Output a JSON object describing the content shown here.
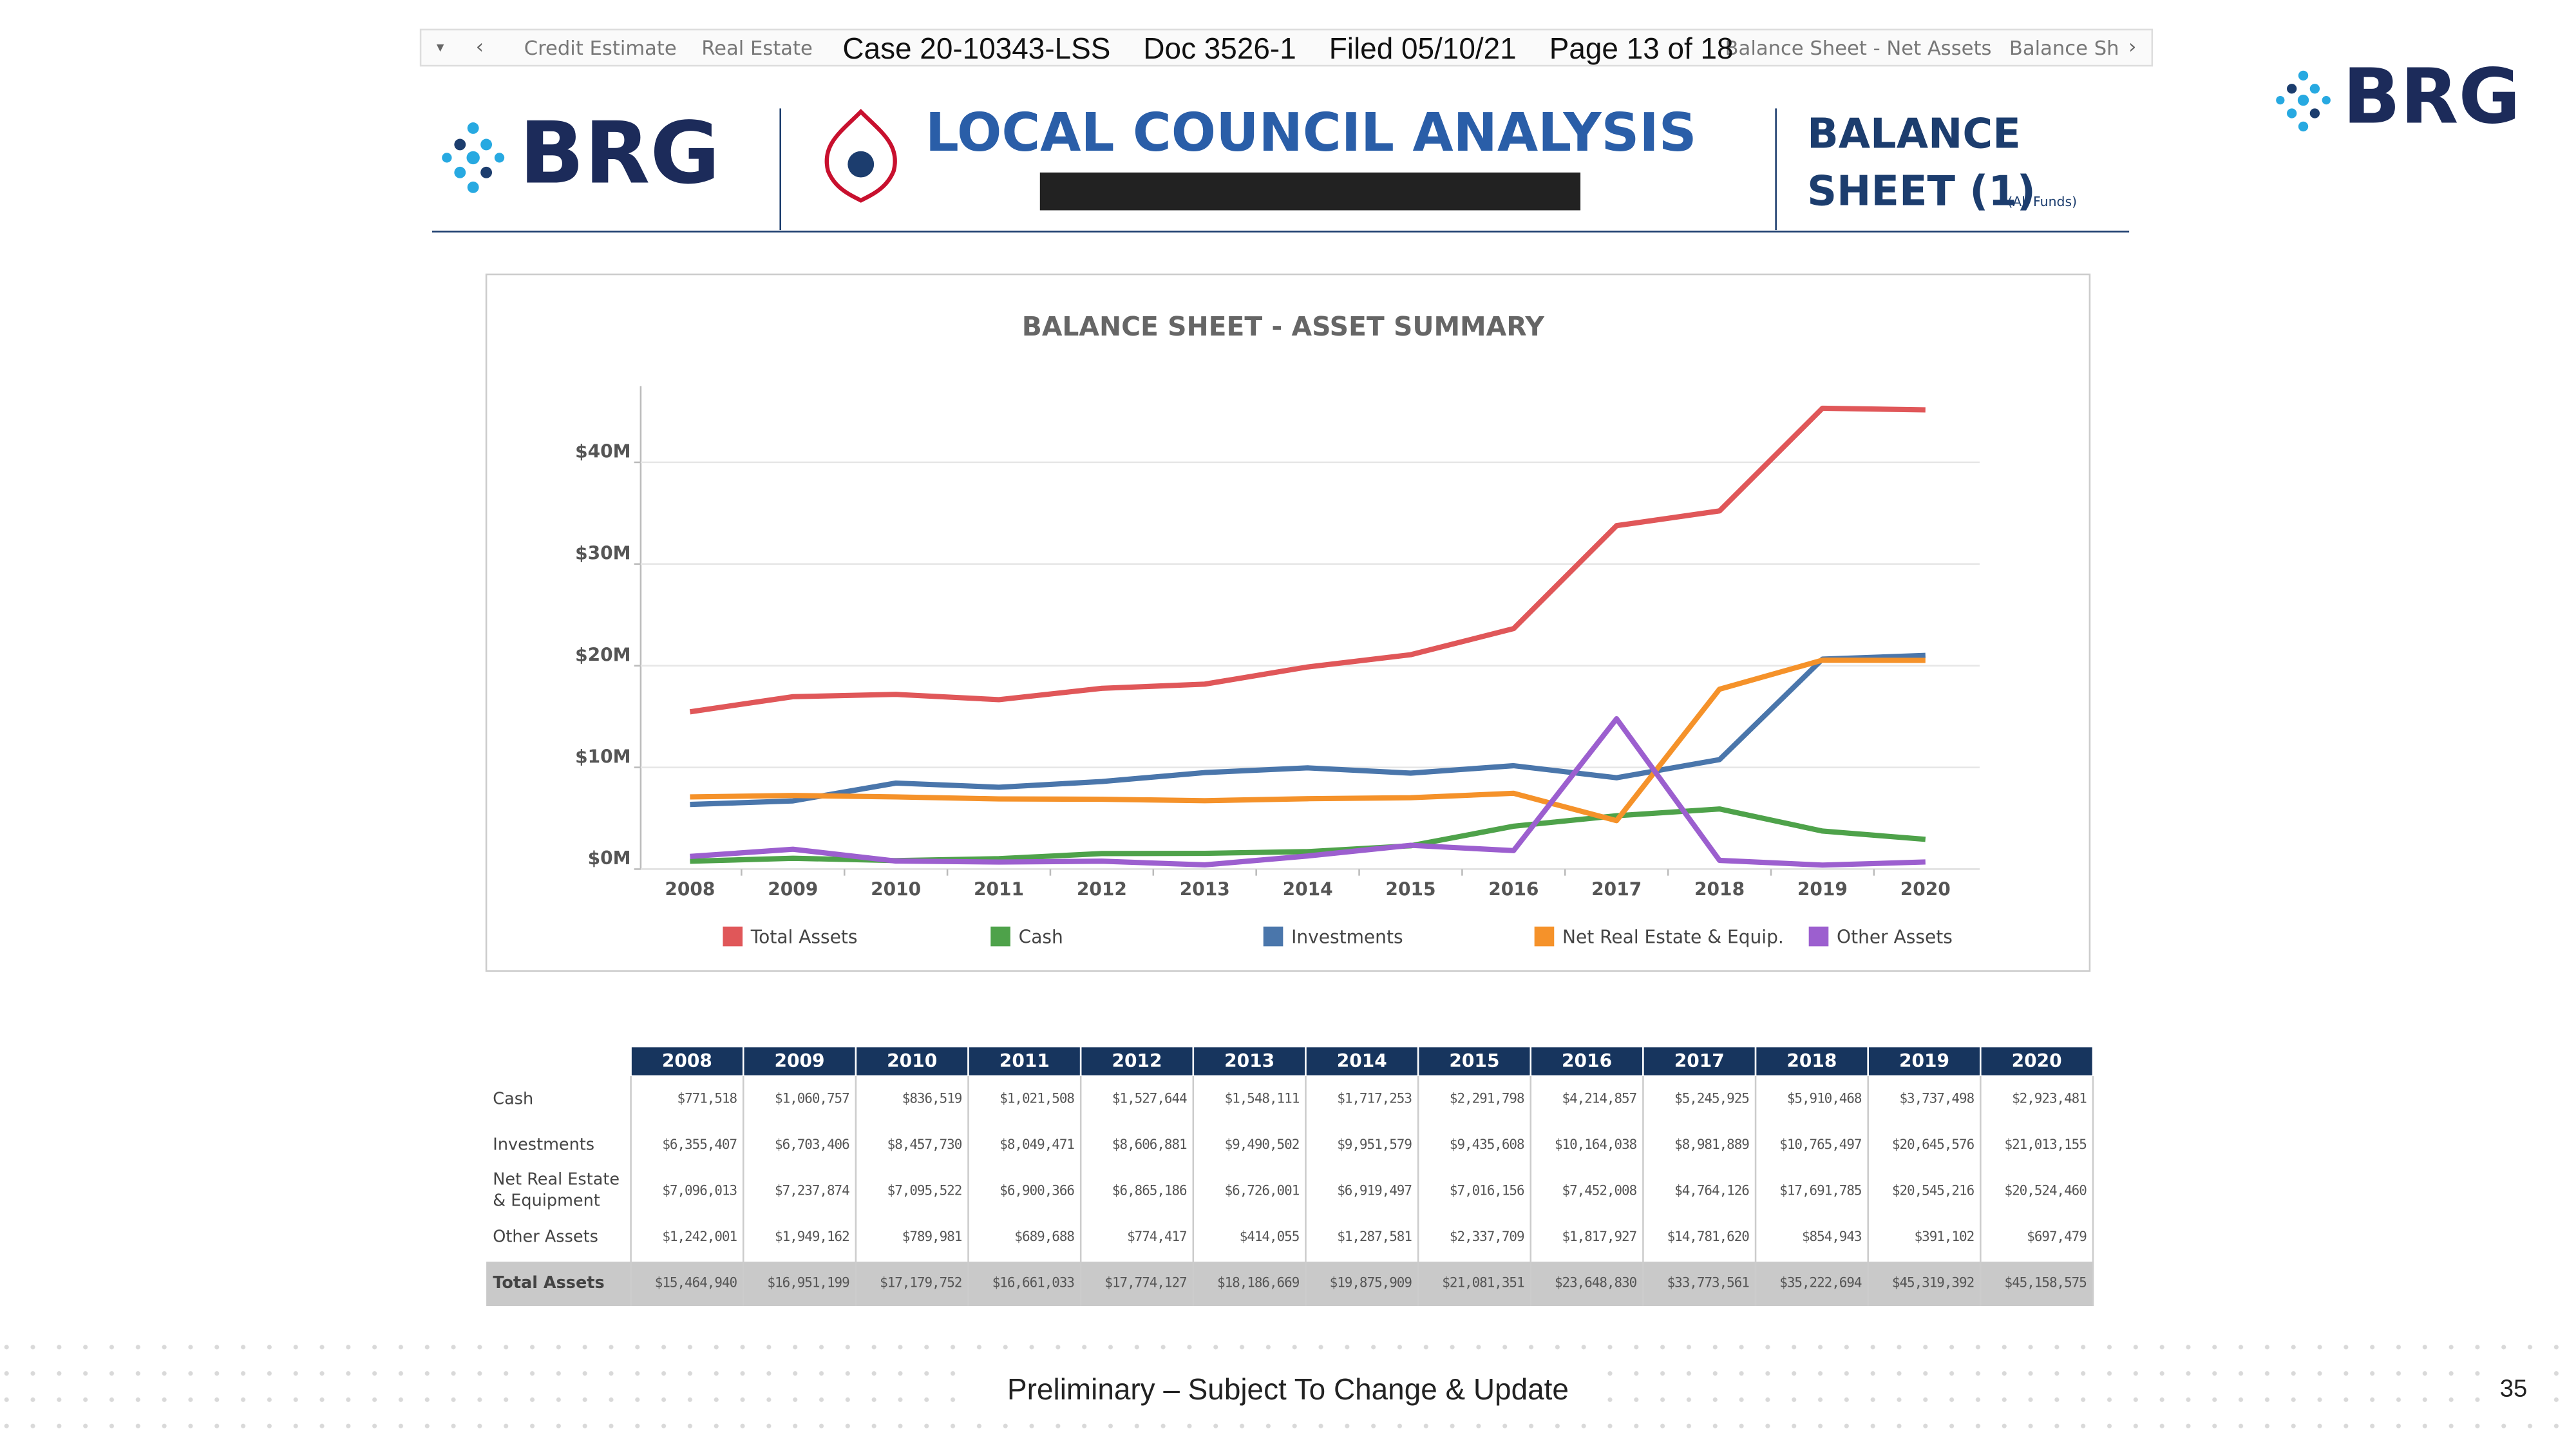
{
  "tabs": [
    "Credit Estimate",
    "Real Estate",
    "Balance Sheet - Net Assets",
    "Balance Sh"
  ],
  "stamp": "Case 20-10343-LSS    Doc 3526-1    Filed 05/10/21    Page 13 of 18",
  "header": {
    "logo": "BRG",
    "title": "LOCAL COUNCIL ANALYSIS",
    "section_line1": "BALANCE",
    "section_line2": "SHEET (1)",
    "section_note": "(All Funds)"
  },
  "chart_data": {
    "type": "line",
    "title": "BALANCE SHEET - ASSET SUMMARY",
    "categories": [
      "2008",
      "2009",
      "2010",
      "2011",
      "2012",
      "2013",
      "2014",
      "2015",
      "2016",
      "2017",
      "2018",
      "2019",
      "2020"
    ],
    "ylim": [
      0,
      47500000
    ],
    "yticks": [
      {
        "value": 0,
        "label": "$0M"
      },
      {
        "value": 10000000,
        "label": "$10M"
      },
      {
        "value": 20000000,
        "label": "$20M"
      },
      {
        "value": 30000000,
        "label": "$30M"
      },
      {
        "value": 40000000,
        "label": "$40M"
      }
    ],
    "grid": true,
    "legend": "bottom",
    "series": [
      {
        "name": "Total Assets",
        "color": "#e05759",
        "values": [
          15464940,
          16951199,
          17179752,
          16661033,
          17774127,
          18186669,
          19875909,
          21081351,
          23648830,
          33773561,
          35222694,
          45319392,
          45158575
        ],
        "value_labels": [
          "$15,464,940",
          "$16,951,199",
          "$17,179,752",
          "$16,661,033",
          "$17,774,127",
          "$18,186,669",
          "$19,875,909",
          "$21,081,351",
          "$23,648,830",
          "$33,773,561",
          "$35,222,694",
          "$45,319,392",
          "$45,158,575"
        ]
      },
      {
        "name": "Cash",
        "color": "#4ea24a",
        "values": [
          771518,
          1060757,
          836519,
          1021508,
          1527644,
          1548111,
          1717253,
          2291798,
          4214857,
          5245925,
          5910468,
          3737498,
          2923481
        ],
        "value_labels": [
          "$771,518",
          "$1,060,757",
          "$836,519",
          "$1,021,508",
          "$1,527,644",
          "$1,548,111",
          "$1,717,253",
          "$2,291,798",
          "$4,214,857",
          "$5,245,925",
          "$5,910,468",
          "$3,737,498",
          "$2,923,481"
        ]
      },
      {
        "name": "Investments",
        "color": "#4a76ab",
        "values": [
          6355407,
          6703406,
          8457730,
          8049471,
          8606881,
          9490502,
          9951579,
          9435608,
          10164038,
          8981889,
          10765497,
          20645576,
          21013155
        ],
        "value_labels": [
          "$6,355,407",
          "$6,703,406",
          "$8,457,730",
          "$8,049,471",
          "$8,606,881",
          "$9,490,502",
          "$9,951,579",
          "$9,435,608",
          "$10,164,038",
          "$8,981,889",
          "$10,765,497",
          "$20,645,576",
          "$21,013,155"
        ]
      },
      {
        "name": "Net Real Estate & Equip.",
        "color": "#f5922a",
        "values": [
          7096013,
          7237874,
          7095522,
          6900366,
          6865186,
          6726001,
          6919497,
          7016156,
          7452008,
          4764126,
          17691785,
          20545216,
          20524460
        ],
        "value_labels": [
          "$7,096,013",
          "$7,237,874",
          "$7,095,522",
          "$6,900,366",
          "$6,865,186",
          "$6,726,001",
          "$6,919,497",
          "$7,016,156",
          "$7,452,008",
          "$4,764,126",
          "$17,691,785",
          "$20,545,216",
          "$20,524,460"
        ]
      },
      {
        "name": "Other Assets",
        "color": "#9c5fcf",
        "values": [
          1242001,
          1949162,
          789981,
          689688,
          774417,
          414055,
          1287581,
          2337709,
          1817927,
          14781620,
          854943,
          391102,
          697479
        ],
        "value_labels": [
          "$1,242,001",
          "$1,949,162",
          "$789,981",
          "$689,688",
          "$774,417",
          "$414,055",
          "$1,287,581",
          "$2,337,709",
          "$1,817,927",
          "$14,781,620",
          "$854,943",
          "$391,102",
          "$697,479"
        ]
      }
    ]
  },
  "table": {
    "row_labels": [
      "Cash",
      "Investments",
      "Net Real Estate & Equipment",
      "Other Assets",
      "Total Assets"
    ]
  },
  "footer": {
    "note": "Preliminary – Subject To Change & Update",
    "page": "35"
  }
}
